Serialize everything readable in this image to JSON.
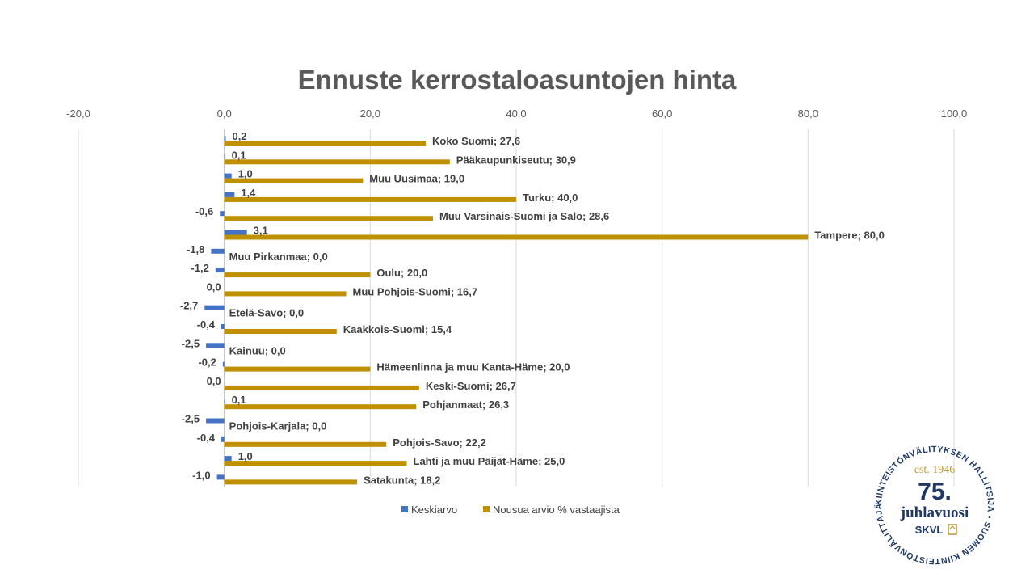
{
  "chart_data": {
    "type": "bar",
    "orientation": "horizontal",
    "title": "Ennuste kerrostaloasuntojen hinta",
    "x_axis_position": "top",
    "xlim": [
      -20,
      100
    ],
    "x_ticks": [
      -20,
      0,
      20,
      40,
      60,
      80,
      100
    ],
    "x_tick_labels": [
      "-20,0",
      "0,0",
      "20,0",
      "40,0",
      "60,0",
      "80,0",
      "100,0"
    ],
    "grid": true,
    "legend_position": "bottom",
    "categories": [
      "Koko Suomi",
      "Pääkaupunkiseutu",
      "Muu Uusimaa",
      "Turku",
      "Muu Varsinais-Suomi ja Salo",
      "Tampere",
      "Muu Pirkanmaa",
      "Oulu",
      "Muu Pohjois-Suomi",
      "Etelä-Savo",
      "Kaakkois-Suomi",
      "Kainuu",
      "Hämeenlinna ja muu Kanta-Häme",
      "Keski-Suomi",
      "Pohjanmaat",
      "Pohjois-Karjala",
      "Pohjois-Savo",
      "Lahti ja muu Päijät-Häme",
      "Satakunta"
    ],
    "series": [
      {
        "name": "Keskiarvo",
        "color": "#4472c4",
        "values": [
          0.2,
          0.1,
          1.0,
          1.4,
          -0.6,
          3.1,
          -1.8,
          -1.2,
          0.0,
          -2.7,
          -0.4,
          -2.5,
          -0.2,
          0.0,
          0.1,
          -2.5,
          -0.4,
          1.0,
          -1.0
        ],
        "labels": [
          "0,2",
          "0,1",
          "1,0",
          "1,4",
          "-0,6",
          "3,1",
          "-1,8",
          "-1,2",
          "0,0",
          "-2,7",
          "-0,4",
          "-2,5",
          "-0,2",
          "0,0",
          "0,1",
          "-2,5",
          "-0,4",
          "1,0",
          "-1,0"
        ]
      },
      {
        "name": "Nousua arvio % vastaajista",
        "color": "#bf9000",
        "values": [
          27.6,
          30.9,
          19.0,
          40.0,
          28.6,
          80.0,
          0.0,
          20.0,
          16.7,
          0.0,
          15.4,
          0.0,
          20.0,
          26.7,
          26.3,
          0.0,
          22.2,
          25.0,
          18.2
        ],
        "labels": [
          "Koko Suomi; 27,6",
          "Pääkaupunkiseutu; 30,9",
          "Muu Uusimaa; 19,0",
          "Turku; 40,0",
          "Muu Varsinais-Suomi ja Salo; 28,6",
          "Tampere; 80,0",
          "Muu Pirkanmaa; 0,0",
          "Oulu; 20,0",
          "Muu Pohjois-Suomi; 16,7",
          "Etelä-Savo; 0,0",
          "Kaakkois-Suomi; 15,4",
          "Kainuu; 0,0",
          "Hämeenlinna ja muu Kanta-Häme; 20,0",
          "Keski-Suomi; 26,7",
          "Pohjanmaat; 26,3",
          "Pohjois-Karjala; 0,0",
          "Pohjois-Savo; 22,2",
          "Lahti ja muu Päijät-Häme; 25,0",
          "Satakunta; 18,2"
        ]
      }
    ]
  },
  "badge": {
    "ring_text": "KIINTEISTÖNVÄLITYKSEN HALLITSIJA • SUOMEN KIINTEISTÖNVÄLITTÄJÄT RY •",
    "est": "est. 1946",
    "number": "75.",
    "word": "juhlavuosi",
    "brand": "SKVL",
    "color_navy": "#1f3864",
    "color_gold": "#b8973e"
  }
}
